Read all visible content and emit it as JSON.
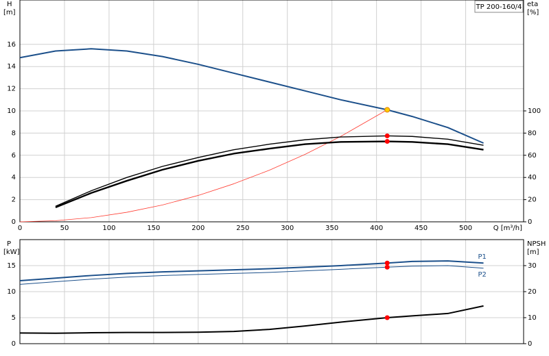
{
  "chart_data": [
    {
      "type": "line",
      "title": "TP 200-160/4",
      "y_label": "H",
      "y_unit": "[m]",
      "y2_label": "eta",
      "y2_unit": "[%]",
      "x_label": "Q [m³/h]",
      "xlim": [
        0,
        565
      ],
      "xticks": [
        0,
        50,
        100,
        150,
        200,
        250,
        300,
        350,
        400,
        450,
        500
      ],
      "xtick_labels": true,
      "ylim": [
        0,
        20
      ],
      "yticks": [
        0,
        2,
        4,
        6,
        8,
        10,
        12,
        14,
        16
      ],
      "y2lim": [
        0,
        200
      ],
      "y2ticks": [
        0,
        20,
        40,
        60,
        80,
        100
      ],
      "grid": true,
      "x": [
        0,
        40,
        80,
        120,
        160,
        200,
        240,
        280,
        320,
        360,
        412,
        440,
        480,
        520
      ],
      "series": [
        {
          "color": "#1b4f8a",
          "width": 2,
          "values": [
            14.8,
            15.4,
            15.6,
            15.4,
            14.9,
            14.2,
            13.4,
            12.6,
            11.8,
            11.0,
            10.1,
            9.5,
            8.5,
            7.1
          ]
        },
        {
          "color": "#ff3b30",
          "width": 0.8,
          "values": [
            0,
            0.1,
            0.38,
            0.86,
            1.52,
            2.38,
            3.43,
            4.66,
            6.09,
            7.71,
            10.1,
            null,
            null,
            null
          ]
        },
        {
          "color": "#000000",
          "width": 1.4,
          "axis": "y2",
          "values": [
            null,
            14,
            28,
            40,
            50,
            58,
            65,
            70,
            74,
            76.5,
            77.5,
            77,
            74.5,
            69
          ]
        },
        {
          "color": "#000000",
          "width": 2.4,
          "axis": "y2",
          "values": [
            null,
            13,
            26,
            37,
            47,
            55,
            61.5,
            66,
            70,
            72,
            72.5,
            72,
            70,
            65
          ]
        }
      ],
      "points": [
        {
          "x": 412,
          "y": 10.1,
          "color": "#ffcc00"
        },
        {
          "x": 412,
          "y": 77.5,
          "axis": "y2",
          "color": "#ff0000"
        },
        {
          "x": 412,
          "y": 72.5,
          "axis": "y2",
          "color": "#ff0000"
        }
      ]
    },
    {
      "type": "line",
      "y_label": "P",
      "y_unit": "[kW]",
      "y2_label": "NPSH",
      "y2_unit": "[m]",
      "xlim": [
        0,
        565
      ],
      "xticks": [
        0,
        50,
        100,
        150,
        200,
        250,
        300,
        350,
        400,
        450,
        500
      ],
      "xtick_labels": false,
      "ylim": [
        0,
        20
      ],
      "yticks": [
        0,
        5,
        10,
        15
      ],
      "y2lim": [
        0,
        40
      ],
      "y2ticks": [
        0,
        10,
        20,
        30
      ],
      "grid": true,
      "x": [
        0,
        40,
        80,
        120,
        160,
        200,
        240,
        280,
        320,
        360,
        412,
        440,
        480,
        520
      ],
      "series": [
        {
          "name": "P1",
          "color": "#1b4f8a",
          "width": 2,
          "values": [
            12.1,
            12.6,
            13.1,
            13.5,
            13.8,
            14.0,
            14.2,
            14.4,
            14.7,
            15.0,
            15.5,
            15.8,
            15.9,
            15.5
          ]
        },
        {
          "name": "P2",
          "color": "#1b4f8a",
          "width": 1,
          "values": [
            11.4,
            11.9,
            12.4,
            12.8,
            13.1,
            13.3,
            13.5,
            13.7,
            14.0,
            14.3,
            14.7,
            14.9,
            15.0,
            14.5
          ]
        },
        {
          "color": "#000000",
          "width": 2,
          "axis": "y2",
          "values": [
            4.1,
            4.0,
            4.2,
            4.3,
            4.3,
            4.4,
            4.7,
            5.5,
            6.8,
            8.3,
            10.0,
            10.7,
            11.6,
            14.5
          ]
        }
      ],
      "points": [
        {
          "x": 412,
          "y": 15.5,
          "color": "#ff0000"
        },
        {
          "x": 412,
          "y": 14.7,
          "color": "#ff0000"
        },
        {
          "x": 412,
          "y": 10.0,
          "axis": "y2",
          "color": "#ff0000"
        }
      ]
    }
  ]
}
